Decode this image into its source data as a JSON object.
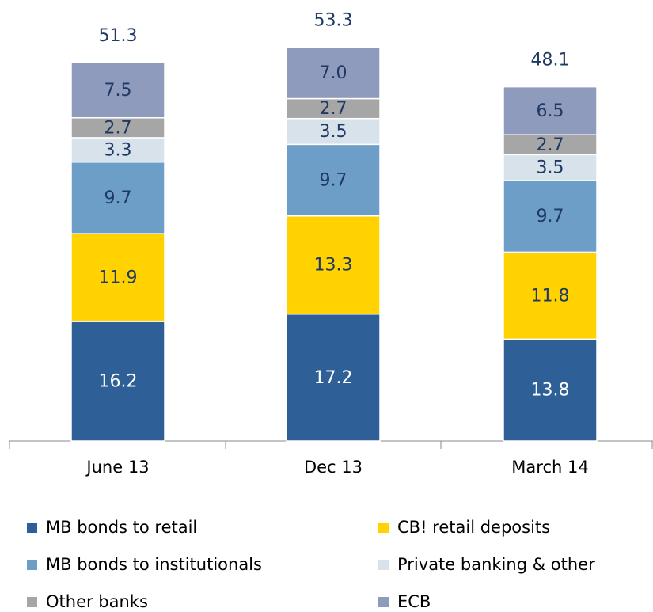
{
  "chart_data": {
    "type": "stacked-bar",
    "categories": [
      "June 13",
      "Dec 13",
      "March 14"
    ],
    "totals": [
      51.3,
      53.3,
      48.1
    ],
    "series": [
      {
        "name": "MB bonds to retail",
        "color": "#2e5f96",
        "values": [
          16.2,
          17.2,
          13.8
        ]
      },
      {
        "name": "CB! retail deposits",
        "color": "#ffd200",
        "values": [
          11.9,
          13.3,
          11.8
        ]
      },
      {
        "name": "MB bonds to institutionals",
        "color": "#6d9ec8",
        "values": [
          9.7,
          9.7,
          9.7
        ]
      },
      {
        "name": "Private banking & other",
        "color": "#d7e2eb",
        "values": [
          3.3,
          3.5,
          3.5
        ]
      },
      {
        "name": "Other banks",
        "color": "#a6a6a6",
        "values": [
          2.7,
          2.7,
          2.7
        ]
      },
      {
        "name": "ECB",
        "color": "#8e9bbd",
        "values": [
          7.5,
          7.0,
          6.5
        ],
        "value_labels": [
          "7.5",
          "7.0",
          "6.5"
        ]
      }
    ]
  }
}
